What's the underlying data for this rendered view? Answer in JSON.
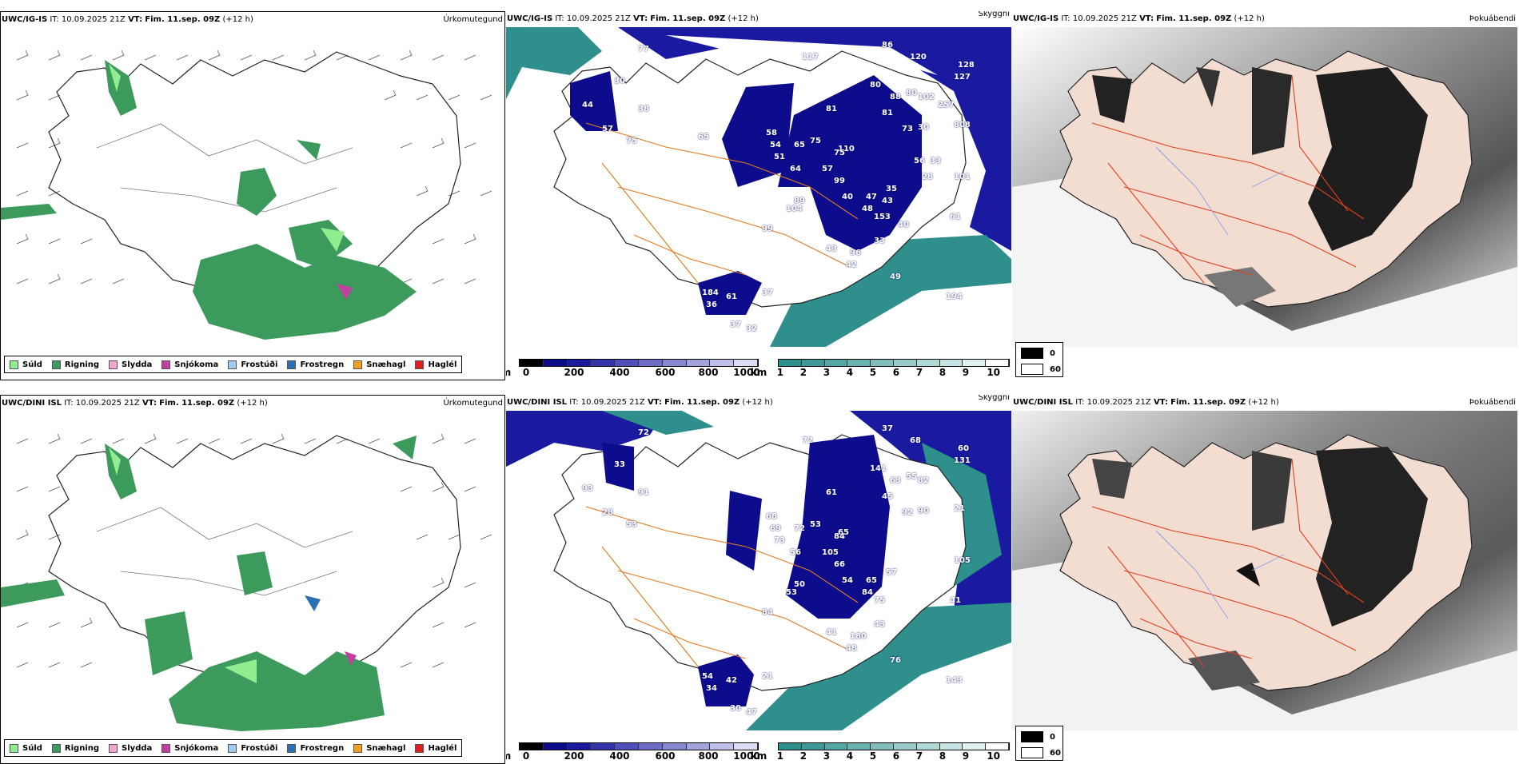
{
  "rows": [
    {
      "model": "UWC/IG-IS",
      "it_label": "IT:",
      "it_value": "10.09.2025 21Z",
      "vt_label": "VT:",
      "vt_value": "Fim. 11.sep. 09Z",
      "lead": "(+12 h)",
      "precip_title": "Úrkomutegund",
      "cloud_title": "Skyggni",
      "fog_title": "Þokuábendi",
      "cloud_numbers": [
        "30",
        "44",
        "38",
        "57",
        "75",
        "77",
        "117",
        "86",
        "120",
        "128",
        "127",
        "80",
        "88",
        "81",
        "80",
        "102",
        "73",
        "30",
        "58",
        "54",
        "51",
        "65",
        "75",
        "64",
        "81",
        "110",
        "75",
        "57",
        "104",
        "99",
        "89",
        "99",
        "40",
        "47",
        "35",
        "48",
        "153",
        "101",
        "61",
        "43",
        "96",
        "33",
        "42",
        "49",
        "194",
        "184",
        "61",
        "37",
        "36",
        "37",
        "32",
        "808",
        "65",
        "56",
        "43",
        "40",
        "28",
        "33",
        "257"
      ]
    },
    {
      "model": "UWC/DINI ISL",
      "it_label": "IT:",
      "it_value": "10.09.2025 21Z",
      "vt_label": "VT:",
      "vt_value": "Fim. 11.sep. 09Z",
      "lead": "(+12 h)",
      "precip_title": "Úrkomutegund",
      "cloud_title": "Skyggni",
      "fog_title": "Þokuábendi",
      "cloud_numbers": [
        "33",
        "93",
        "91",
        "28",
        "53",
        "72",
        "72",
        "37",
        "68",
        "60",
        "131",
        "141",
        "63",
        "45",
        "55",
        "82",
        "92",
        "90",
        "68",
        "69",
        "73",
        "72",
        "53",
        "56",
        "61",
        "65",
        "84",
        "105",
        "53",
        "84",
        "50",
        "66",
        "54",
        "65",
        "57",
        "84",
        "75",
        "105",
        "41",
        "41",
        "180",
        "43",
        "48",
        "76",
        "143",
        "54",
        "42",
        "21",
        "34",
        "30",
        "47",
        "21"
      ]
    }
  ],
  "precip_legend": [
    {
      "label": "Súld",
      "color": "#90ee90"
    },
    {
      "label": "Rigning",
      "color": "#3c9a5c"
    },
    {
      "label": "Slydda",
      "color": "#f4a6d0"
    },
    {
      "label": "Snjókoma",
      "color": "#c040a0"
    },
    {
      "label": "Frostúði",
      "color": "#9ecaf0"
    },
    {
      "label": "Frostregn",
      "color": "#2d6fb5"
    },
    {
      "label": "Snæhagl",
      "color": "#f0a020"
    },
    {
      "label": "Haglél",
      "color": "#e02020"
    }
  ],
  "cloud_base_scale": {
    "unit": "m",
    "ticks": [
      "0",
      "200",
      "400",
      "600",
      "800",
      "1000"
    ]
  },
  "visibility_scale": {
    "unit": "km",
    "ticks": [
      "1",
      "2",
      "3",
      "4",
      "5",
      "6",
      "7",
      "8",
      "9",
      "10"
    ]
  },
  "fog_scale": {
    "ticks": [
      "0",
      "60"
    ]
  },
  "colors": {
    "rain": "#3c9a5c",
    "drizzle": "#90ee90",
    "cloud_dark": "#0c0c8c",
    "cloud_mid": "#3434aa",
    "vis_teal": "#2f8f8c",
    "road": "#e07a20",
    "fog_land": "#f3ddd0",
    "fog_road": "#e04020"
  }
}
